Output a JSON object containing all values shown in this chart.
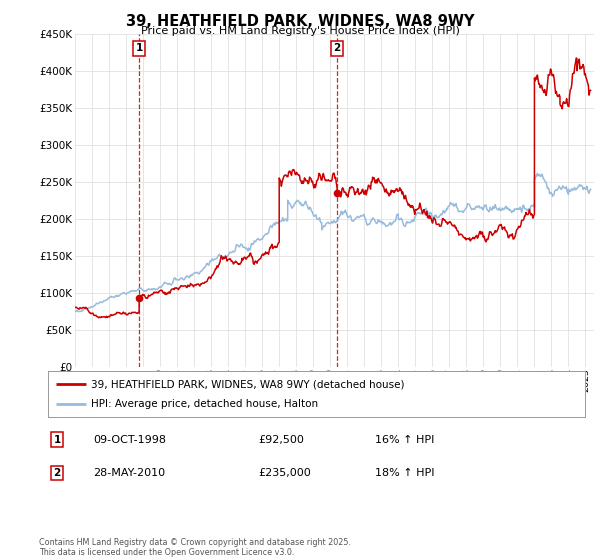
{
  "title": "39, HEATHFIELD PARK, WIDNES, WA8 9WY",
  "subtitle": "Price paid vs. HM Land Registry's House Price Index (HPI)",
  "ylim": [
    0,
    450000
  ],
  "yticks": [
    0,
    50000,
    100000,
    150000,
    200000,
    250000,
    300000,
    350000,
    400000,
    450000
  ],
  "ytick_labels": [
    "£0",
    "£50K",
    "£100K",
    "£150K",
    "£200K",
    "£250K",
    "£300K",
    "£350K",
    "£400K",
    "£450K"
  ],
  "sale1_year": 1998.77,
  "sale1_price": 92500,
  "sale2_year": 2010.4,
  "sale2_price": 235000,
  "line_color_property": "#cc0000",
  "line_color_hpi": "#99bbdd",
  "vline_color": "#cc0000",
  "background_color": "#ffffff",
  "grid_color": "#e0e0e0",
  "legend_label_property": "39, HEATHFIELD PARK, WIDNES, WA8 9WY (detached house)",
  "legend_label_hpi": "HPI: Average price, detached house, Halton",
  "footnote": "Contains HM Land Registry data © Crown copyright and database right 2025.\nThis data is licensed under the Open Government Licence v3.0.",
  "table_rows": [
    {
      "num": "1",
      "date": "09-OCT-1998",
      "price": "£92,500",
      "pct": "16% ↑ HPI"
    },
    {
      "num": "2",
      "date": "28-MAY-2010",
      "price": "£235,000",
      "pct": "18% ↑ HPI"
    }
  ]
}
